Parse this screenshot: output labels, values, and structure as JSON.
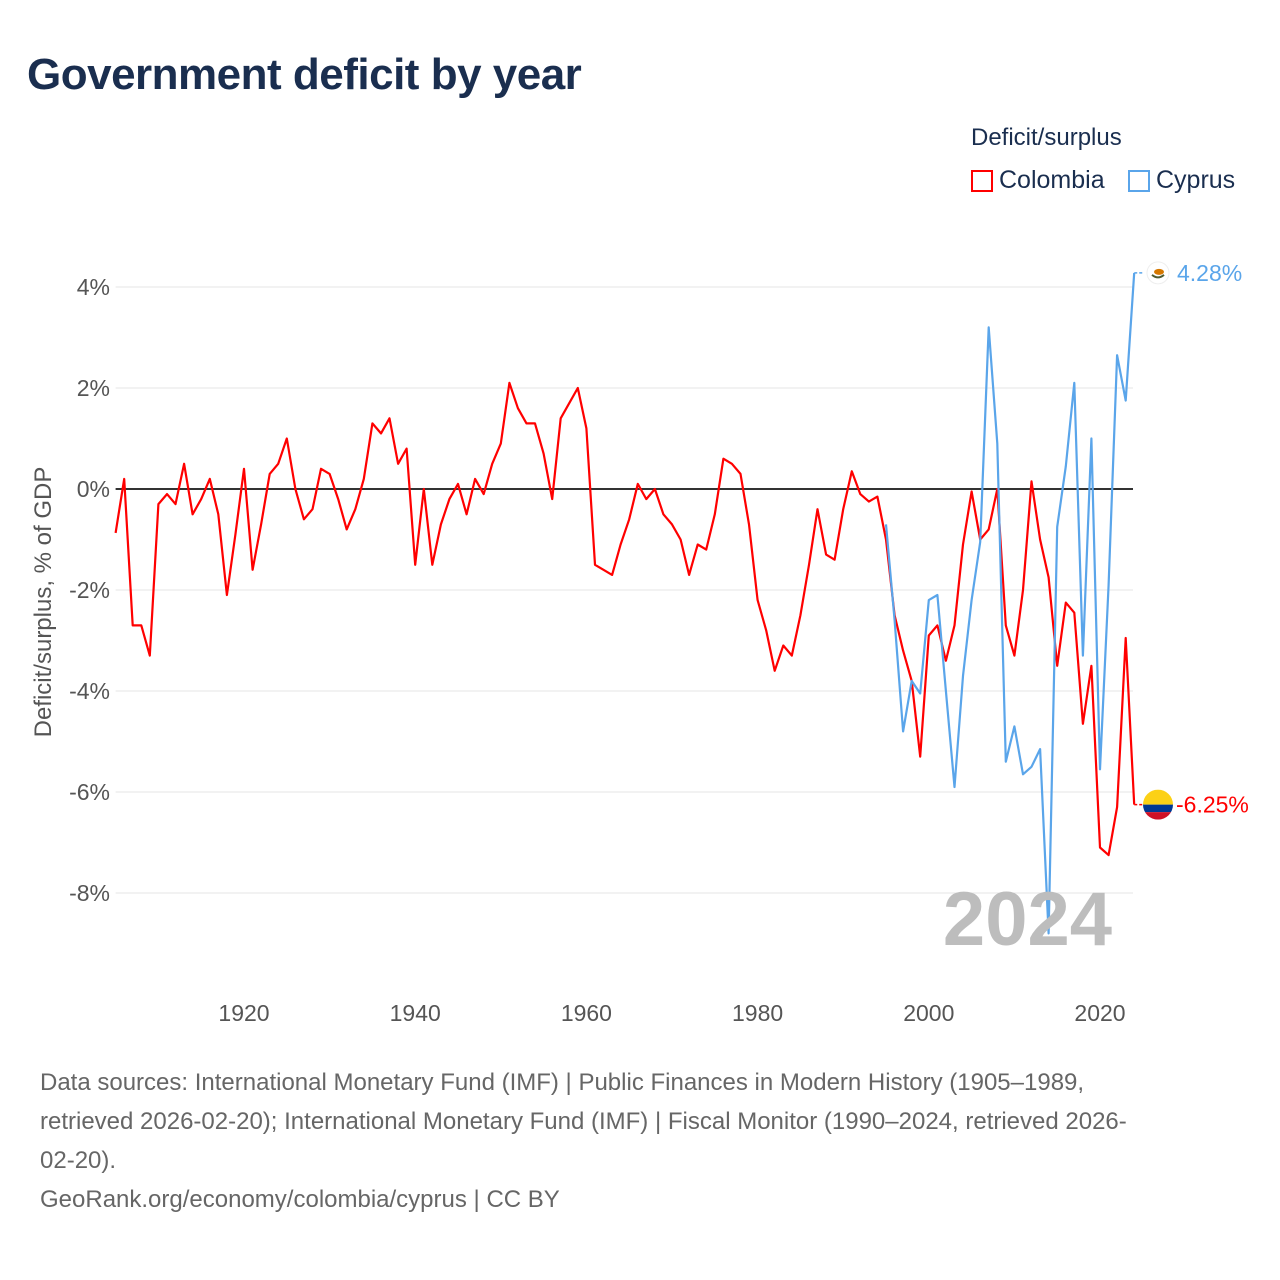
{
  "title": "Government deficit by year",
  "legend": {
    "title": "Deficit/surplus",
    "items": [
      "Colombia",
      "Cyprus"
    ]
  },
  "colors": {
    "Colombia": "#ff0000",
    "Cyprus": "#5aa5ea",
    "zero_line": "#333333",
    "grid": "#e6e6e6"
  },
  "current_year": "2024",
  "end_labels": {
    "Colombia": "-6.25%",
    "Cyprus": "4.28%"
  },
  "footer": {
    "sources_lines": [
      "Data sources: International Monetary Fund (IMF) | Public Finances in Modern History (1905–1989,",
      "retrieved 2026-02-20); International Monetary Fund (IMF) | Fiscal Monitor (1990–2024, retrieved 2026-",
      "02-20)."
    ],
    "credit": "GeoRank.org/economy/colombia/cyprus | CC BY"
  },
  "chart_data": {
    "type": "line",
    "title": "Government deficit by year",
    "xlabel": "",
    "ylabel": "Deficit/surplus, % of GDP",
    "xlim": [
      1905,
      2024
    ],
    "ylim": [
      -9.5,
      4.5
    ],
    "x_ticks": [
      1920,
      1940,
      1960,
      1980,
      2000,
      2020
    ],
    "x_tick_labels": [
      "1920",
      "1940",
      "1960",
      "1980",
      "2000",
      "2020"
    ],
    "y_ticks": [
      4,
      2,
      0,
      -2,
      -4,
      -6,
      -8
    ],
    "y_tick_labels": [
      "4%",
      "2%",
      "0%",
      "-2%",
      "-4%",
      "-6%",
      "-8%"
    ],
    "grid": true,
    "legend_position": "top-right",
    "series": [
      {
        "name": "Colombia",
        "start_year": 1905,
        "values": [
          -0.87,
          0.2,
          -2.7,
          -2.7,
          -3.3,
          -0.3,
          -0.1,
          -0.3,
          0.5,
          -0.5,
          -0.2,
          0.2,
          -0.5,
          -2.1,
          -0.9,
          0.4,
          -1.6,
          -0.7,
          0.3,
          0.5,
          1.0,
          0.0,
          -0.6,
          -0.4,
          0.4,
          0.3,
          -0.2,
          -0.8,
          -0.4,
          0.2,
          1.3,
          1.1,
          1.4,
          0.5,
          0.8,
          -1.5,
          0.0,
          -1.5,
          -0.7,
          -0.2,
          0.1,
          -0.5,
          0.2,
          -0.1,
          0.5,
          0.9,
          2.1,
          1.6,
          1.3,
          1.3,
          0.7,
          -0.2,
          1.4,
          1.7,
          2.0,
          1.2,
          -1.5,
          -1.6,
          -1.7,
          -1.1,
          -0.6,
          0.1,
          -0.2,
          0.0,
          -0.5,
          -0.7,
          -1.0,
          -1.7,
          -1.1,
          -1.2,
          -0.5,
          0.6,
          0.5,
          0.3,
          -0.7,
          -2.2,
          -2.8,
          -3.6,
          -3.1,
          -3.3,
          -2.5,
          -1.5,
          -0.4,
          -1.3,
          -1.4,
          -0.4,
          0.35,
          -0.1,
          -0.25,
          -0.15,
          -1.0,
          -2.5,
          -3.2,
          -3.8,
          -5.3,
          -2.9,
          -2.7,
          -3.4,
          -2.7,
          -1.1,
          -0.05,
          -1.0,
          -0.8,
          0.0,
          -2.7,
          -3.3,
          -2.0,
          0.15,
          -1.0,
          -1.75,
          -3.5,
          -2.25,
          -2.45,
          -4.65,
          -3.5,
          -7.1,
          -7.25,
          -6.3,
          -2.95,
          -6.25
        ]
      },
      {
        "name": "Cyprus",
        "start_year": 1995,
        "values": [
          -0.7,
          -2.6,
          -4.8,
          -3.8,
          -4.05,
          -2.2,
          -2.1,
          -4.0,
          -5.9,
          -3.7,
          -2.2,
          -1.05,
          3.2,
          0.9,
          -5.4,
          -4.7,
          -5.65,
          -5.5,
          -5.15,
          -8.8,
          -0.75,
          0.45,
          2.1,
          -3.3,
          1.0,
          -5.55,
          -1.9,
          2.65,
          1.75,
          4.28
        ]
      }
    ]
  }
}
